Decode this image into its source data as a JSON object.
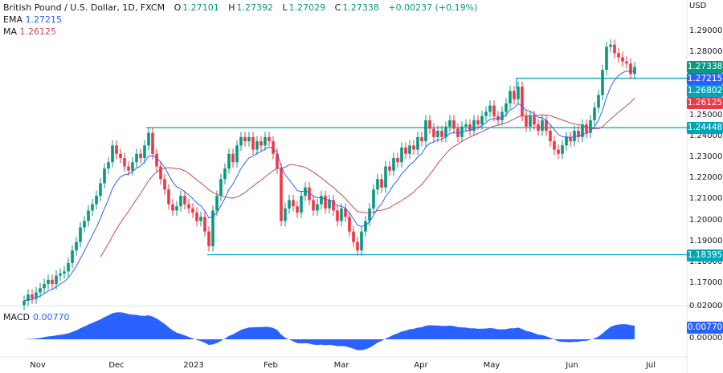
{
  "header": {
    "symbol": "British Pound / U.S. Dollar, 1D, FXCM",
    "open_label": "O",
    "open": "1.27101",
    "high_label": "H",
    "high": "1.27392",
    "low_label": "L",
    "low": "1.27029",
    "close_label": "C",
    "close": "1.27338",
    "change": "+0.00237 (+0.19%)"
  },
  "indicators": {
    "ema_label": "EMA",
    "ema_value": "1.27215",
    "ma_label": "MA",
    "ma_value": "1.26125",
    "macd_label": "MACD",
    "macd_value": "0.00770"
  },
  "price_axis": {
    "currency": "USD",
    "ticks": [
      "1.29000",
      "1.28000",
      "1.25000",
      "1.24000",
      "1.23000",
      "1.22000",
      "1.21000",
      "1.20000",
      "1.19000",
      "1.18000",
      "1.17000"
    ],
    "macd_ticks": [
      "0.02000",
      "0.00000"
    ]
  },
  "price_tags": [
    {
      "value": "1.27338",
      "color": "#089981"
    },
    {
      "value": "1.27215",
      "color": "#2962ff"
    },
    {
      "value": "1.26802",
      "color": "#00a5b8"
    },
    {
      "value": "1.26125",
      "color": "#f23645"
    },
    {
      "value": "1.24448",
      "color": "#00a5b8"
    },
    {
      "value": "1.18395",
      "color": "#00a5b8"
    }
  ],
  "macd_tag": {
    "value": "0.00770",
    "color": "#2962ff"
  },
  "time_axis": [
    "Nov",
    "Dec",
    "2023",
    "Feb",
    "Mar",
    "Apr",
    "May",
    "Jun",
    "Jul"
  ],
  "colors": {
    "up": "#089981",
    "down": "#f23645",
    "ema": "#2962ff",
    "ma": "#c2485a",
    "levels": "#00a5b8",
    "macd": "#2962ff"
  },
  "chart_data": {
    "type": "candlestick",
    "ylim": [
      1.16,
      1.3
    ],
    "levels": [
      1.24448,
      1.18395,
      1.26802
    ],
    "ema_period": 9,
    "ma_period": 20,
    "closes": [
      1.162,
      1.165,
      1.163,
      1.166,
      1.168,
      1.17,
      1.172,
      1.17,
      1.174,
      1.175,
      1.176,
      1.18,
      1.186,
      1.19,
      1.197,
      1.2,
      1.205,
      1.208,
      1.212,
      1.218,
      1.225,
      1.228,
      1.236,
      1.232,
      1.23,
      1.226,
      1.224,
      1.228,
      1.232,
      1.23,
      1.236,
      1.242,
      1.232,
      1.226,
      1.22,
      1.215,
      1.208,
      1.205,
      1.207,
      1.212,
      1.208,
      1.206,
      1.204,
      1.2,
      1.202,
      1.195,
      1.188,
      1.205,
      1.212,
      1.22,
      1.225,
      1.232,
      1.228,
      1.236,
      1.24,
      1.238,
      1.24,
      1.234,
      1.238,
      1.236,
      1.24,
      1.238,
      1.232,
      1.225,
      1.2,
      1.206,
      1.21,
      1.207,
      1.204,
      1.212,
      1.216,
      1.21,
      1.205,
      1.208,
      1.212,
      1.206,
      1.21,
      1.205,
      1.2,
      1.206,
      1.202,
      1.195,
      1.19,
      1.186,
      1.195,
      1.2,
      1.206,
      1.215,
      1.22,
      1.216,
      1.226,
      1.224,
      1.23,
      1.228,
      1.235,
      1.232,
      1.236,
      1.234,
      1.24,
      1.238,
      1.248,
      1.244,
      1.24,
      1.243,
      1.24,
      1.245,
      1.248,
      1.244,
      1.24,
      1.245,
      1.246,
      1.243,
      1.248,
      1.246,
      1.25,
      1.252,
      1.255,
      1.25,
      1.248,
      1.252,
      1.256,
      1.262,
      1.258,
      1.264,
      1.25,
      1.245,
      1.25,
      1.246,
      1.243,
      1.248,
      1.243,
      1.238,
      1.234,
      1.232,
      1.236,
      1.24,
      1.238,
      1.243,
      1.24,
      1.246,
      1.242,
      1.248,
      1.254,
      1.26,
      1.272,
      1.283,
      1.284,
      1.28,
      1.278,
      1.276,
      1.275,
      1.27,
      1.2734
    ]
  }
}
